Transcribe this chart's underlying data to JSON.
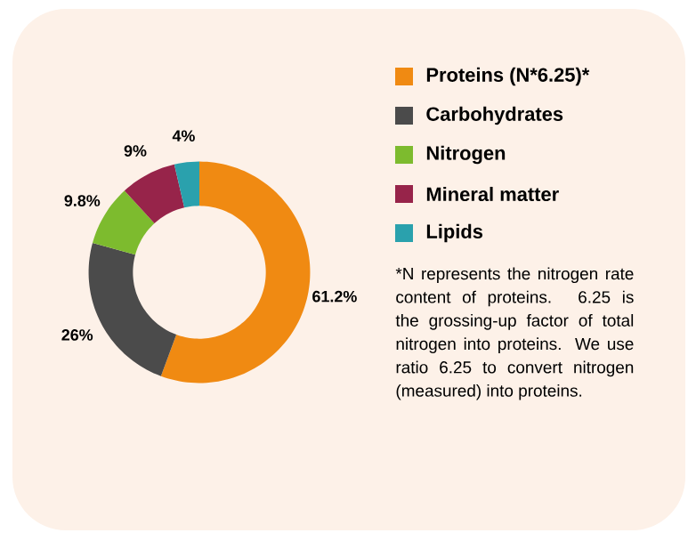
{
  "chart_data": {
    "type": "donut",
    "categories": [
      "Proteins (N*6.25)*",
      "Carbohydrates",
      "Nitrogen",
      "Mineral matter",
      "Lipids"
    ],
    "values": [
      61.2,
      26,
      9.8,
      9,
      4
    ],
    "colors": [
      "#f08a12",
      "#4b4b4b",
      "#7dbb2e",
      "#97244a",
      "#2aa1ad"
    ],
    "value_labels": [
      "61.2%",
      "26%",
      "9.8%",
      "9%",
      "4%"
    ],
    "legend": "right",
    "annotations": [
      "*N represents the nitrogen rate content of proteins. 6.25 is the grossing-up factor of total nitrogen into proteins. We use ratio 6.25 to convert nitrogen (measured) into proteins."
    ]
  }
}
